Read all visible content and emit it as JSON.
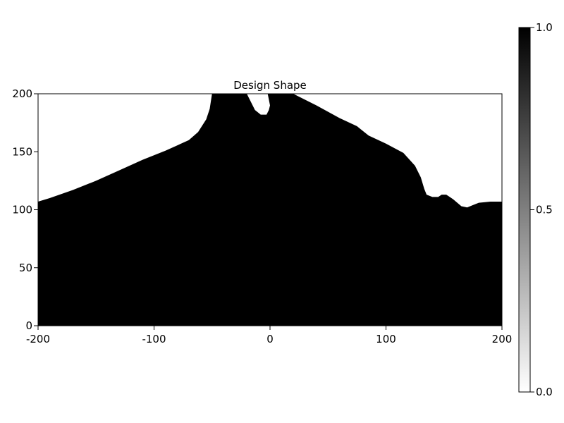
{
  "chart_data": {
    "type": "heatmap",
    "title": "Design Shape",
    "xlabel": "",
    "ylabel": "",
    "xlim": [
      -200,
      200
    ],
    "ylim": [
      0,
      200
    ],
    "x_ticks": [
      -200,
      -100,
      0,
      100,
      200
    ],
    "y_ticks": [
      0,
      50,
      100,
      150,
      200
    ],
    "x_tick_labels": [
      "-200",
      "-100",
      "0",
      "100",
      "200"
    ],
    "y_tick_labels": [
      "0",
      "50",
      "100",
      "150",
      "200"
    ],
    "grid": false,
    "colormap": "grayscale reversed (white = 0.0, black = 1.0)",
    "colorbar": {
      "range": [
        0.0,
        1.0
      ],
      "ticks": [
        0.0,
        0.5,
        1.0
      ],
      "tick_labels": [
        "0.0",
        "0.5",
        "1.0"
      ],
      "color_low": "#ffffff",
      "color_high": "#000000"
    },
    "filled_value": 1.0,
    "boundary": [
      {
        "x": -200,
        "y": 107
      },
      {
        "x": -190,
        "y": 110
      },
      {
        "x": -170,
        "y": 117
      },
      {
        "x": -150,
        "y": 125
      },
      {
        "x": -130,
        "y": 134
      },
      {
        "x": -110,
        "y": 143
      },
      {
        "x": -90,
        "y": 151
      },
      {
        "x": -70,
        "y": 160
      },
      {
        "x": -62,
        "y": 167
      },
      {
        "x": -55,
        "y": 178
      },
      {
        "x": -52,
        "y": 187
      },
      {
        "x": -50,
        "y": 200
      },
      {
        "x": -20,
        "y": 200
      },
      {
        "x": -17,
        "y": 194
      },
      {
        "x": -13,
        "y": 186
      },
      {
        "x": -8,
        "y": 182
      },
      {
        "x": -3,
        "y": 182
      },
      {
        "x": -1,
        "y": 186
      },
      {
        "x": 0,
        "y": 190
      },
      {
        "x": -2,
        "y": 200
      },
      {
        "x": 20,
        "y": 200
      },
      {
        "x": 40,
        "y": 190
      },
      {
        "x": 60,
        "y": 179
      },
      {
        "x": 75,
        "y": 172
      },
      {
        "x": 85,
        "y": 164
      },
      {
        "x": 100,
        "y": 157
      },
      {
        "x": 115,
        "y": 149
      },
      {
        "x": 125,
        "y": 138
      },
      {
        "x": 130,
        "y": 128
      },
      {
        "x": 133,
        "y": 118
      },
      {
        "x": 135,
        "y": 113
      },
      {
        "x": 140,
        "y": 111
      },
      {
        "x": 145,
        "y": 111
      },
      {
        "x": 148,
        "y": 113
      },
      {
        "x": 152,
        "y": 113
      },
      {
        "x": 158,
        "y": 109
      },
      {
        "x": 165,
        "y": 103
      },
      {
        "x": 170,
        "y": 102
      },
      {
        "x": 175,
        "y": 104
      },
      {
        "x": 180,
        "y": 106
      },
      {
        "x": 190,
        "y": 107
      },
      {
        "x": 200,
        "y": 107
      }
    ]
  }
}
